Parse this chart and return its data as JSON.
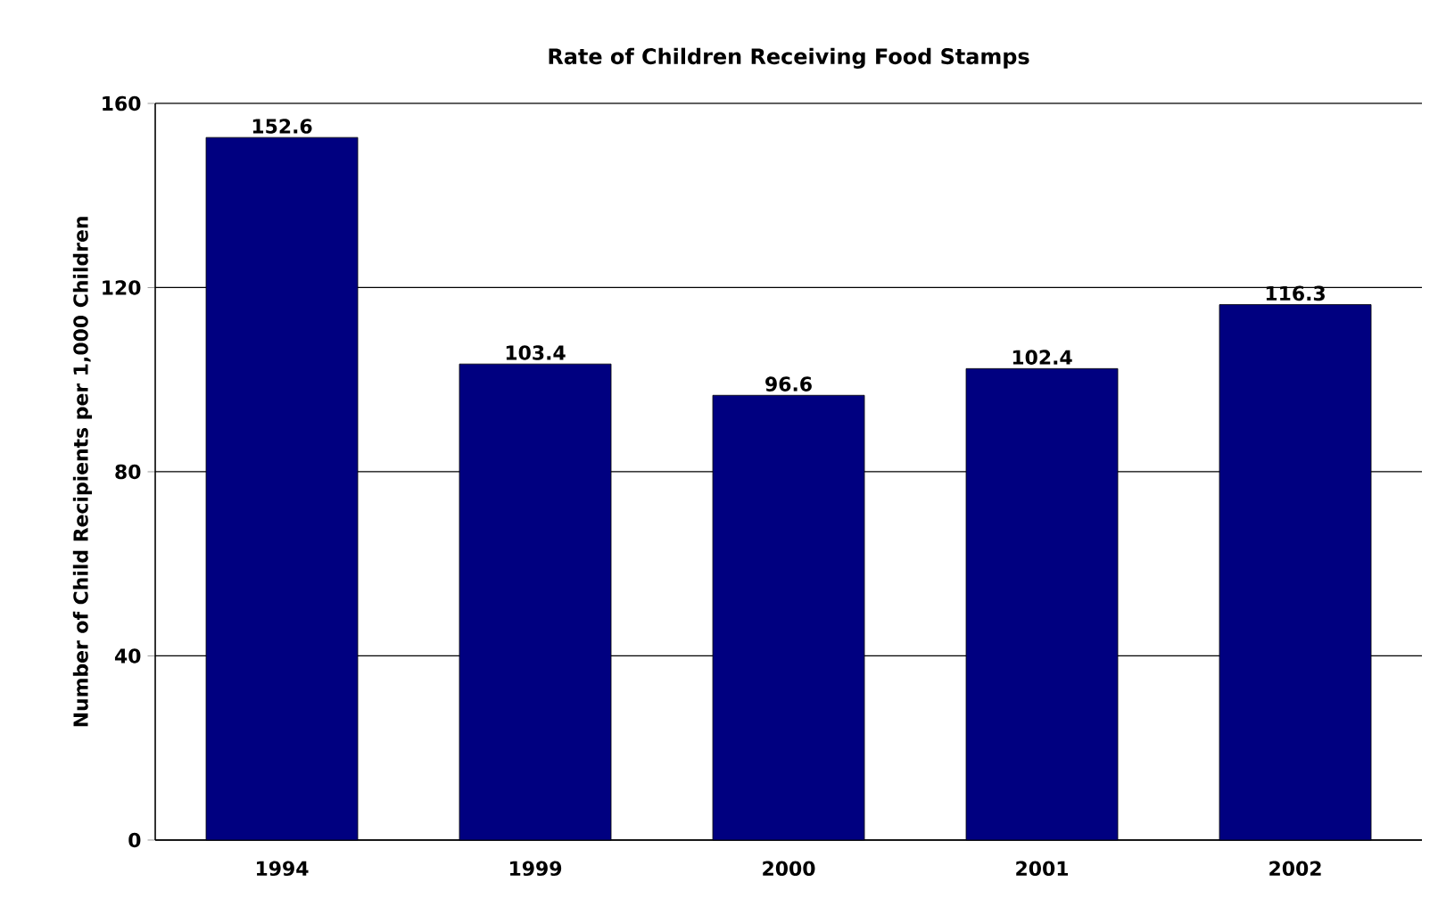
{
  "chart_data": {
    "type": "bar",
    "title": "Rate of Children Receiving Food Stamps",
    "ylabel": "Number of Child Recipients per 1,000 Children",
    "categories": [
      "1994",
      "1999",
      "2000",
      "2001",
      "2002"
    ],
    "values": [
      152.6,
      103.4,
      96.6,
      102.4,
      116.3
    ],
    "color": "#000080",
    "ylim": [
      0,
      160
    ],
    "yticks": [
      0,
      40,
      80,
      120,
      160
    ],
    "grid": "y",
    "data_labels": true
  }
}
